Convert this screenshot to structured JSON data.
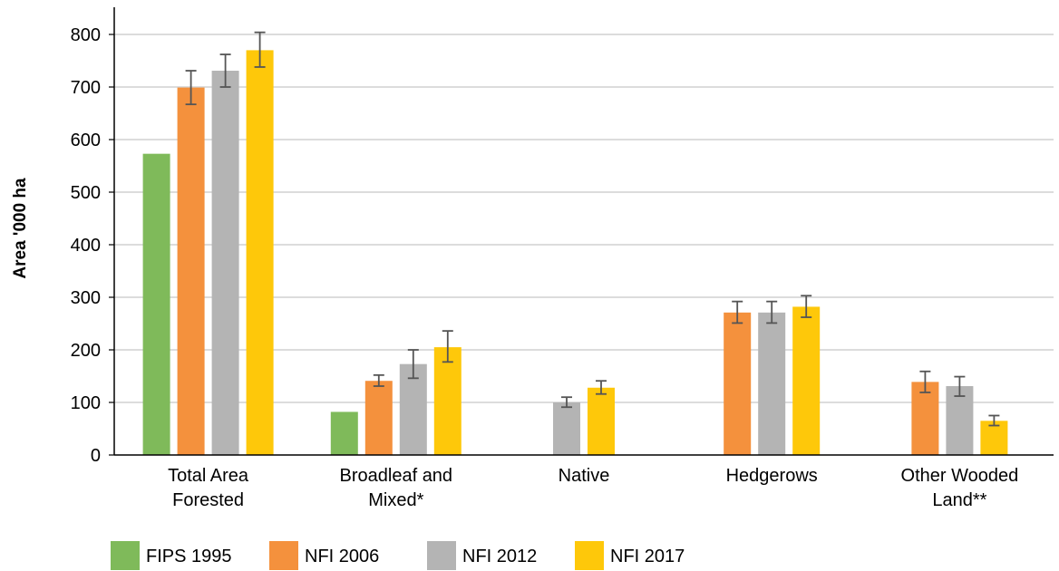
{
  "chart_data": {
    "type": "bar",
    "ylabel": "Area '000 ha",
    "xlabel": "",
    "ylim": [
      0,
      800
    ],
    "yticks": [
      0,
      100,
      200,
      300,
      400,
      500,
      600,
      700,
      800
    ],
    "grid": true,
    "legend_position": "bottom-left",
    "categories": [
      [
        "Total Area",
        "Forested"
      ],
      [
        "Broadleaf and",
        "Mixed*"
      ],
      [
        "Native"
      ],
      [
        "Hedgerows"
      ],
      [
        "Other Wooded",
        "Land**"
      ]
    ],
    "series": [
      {
        "name": "FIPS 1995",
        "color": "#7fba5a",
        "values": [
          573,
          82,
          null,
          null,
          null
        ],
        "errors": [
          null,
          null,
          null,
          null,
          null
        ]
      },
      {
        "name": "NFI 2006",
        "color": "#f4913d",
        "values": [
          699,
          141,
          null,
          271,
          139
        ],
        "errors": [
          [
            667,
            731
          ],
          [
            131,
            152
          ],
          null,
          [
            251,
            292
          ],
          [
            119,
            159
          ]
        ]
      },
      {
        "name": "NFI 2012",
        "color": "#b4b4b4",
        "values": [
          731,
          173,
          100,
          271,
          131
        ],
        "errors": [
          [
            700,
            762
          ],
          [
            146,
            200
          ],
          [
            91,
            110
          ],
          [
            251,
            292
          ],
          [
            112,
            149
          ]
        ]
      },
      {
        "name": "NFI 2017",
        "color": "#fec80a",
        "values": [
          770,
          205,
          128,
          282,
          65
        ],
        "errors": [
          [
            738,
            804
          ],
          [
            177,
            236
          ],
          [
            116,
            141
          ],
          [
            262,
            303
          ],
          [
            56,
            75
          ]
        ]
      }
    ]
  }
}
